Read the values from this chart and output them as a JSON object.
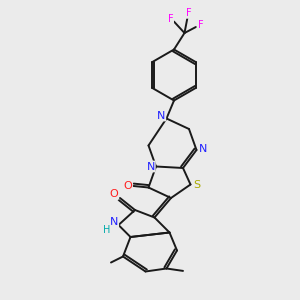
{
  "bg_color": "#ebebeb",
  "atom_colors": {
    "C": "#1a1a1a",
    "N": "#2020ff",
    "O": "#ff2020",
    "S": "#aaaa00",
    "F": "#ff00ff",
    "H": "#00aaaa"
  },
  "bond_color": "#1a1a1a",
  "bond_width": 1.4
}
